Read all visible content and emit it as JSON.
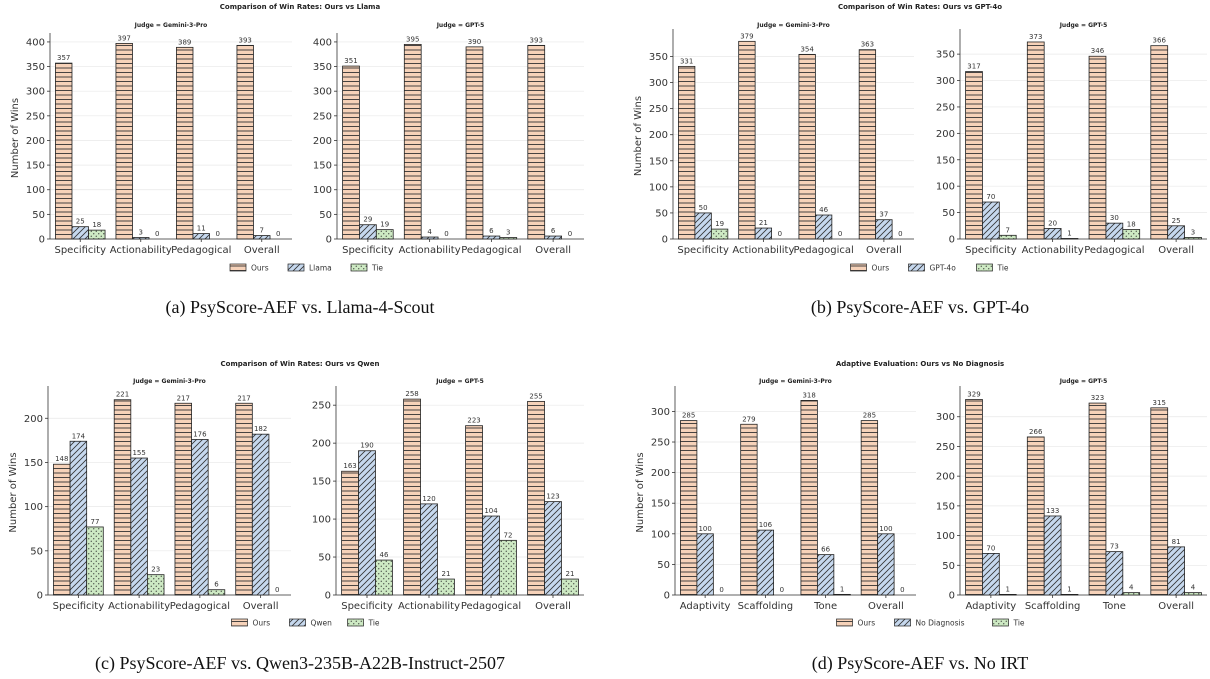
{
  "colors": {
    "ours": "#f6d2b9",
    "baseline": "#c6d8ee",
    "tie": "#cde9c3",
    "edge": "#222222",
    "grid": "#e6e6e6"
  },
  "patterns": {
    "ours": "horizontal-lines",
    "baseline": "diagonal-lines",
    "tie": "dots"
  },
  "chart_data": [
    {
      "type": "bar",
      "caption": "(a) PsyScore-AEF vs. Llama-4-Scout",
      "title": "Comparison of Win Rates: Ours vs Llama",
      "ylabel": "Number of Wins",
      "legend": [
        "Ours",
        "Llama",
        "Tie"
      ],
      "legend_position": "bottom-center",
      "grid": true,
      "panels": [
        {
          "judge": "Judge = Gemini-3-Pro",
          "ylim": [
            0,
            410
          ],
          "yticks": [
            0,
            50,
            100,
            150,
            200,
            250,
            300,
            350,
            400
          ],
          "categories": [
            "Specificity",
            "Actionability",
            "Pedagogical",
            "Overall"
          ],
          "series": [
            {
              "name": "Ours",
              "values": [
                357,
                397,
                389,
                393
              ]
            },
            {
              "name": "Llama",
              "values": [
                25,
                3,
                11,
                7
              ]
            },
            {
              "name": "Tie",
              "values": [
                18,
                0,
                0,
                0
              ]
            }
          ]
        },
        {
          "judge": "Judge = GPT-5",
          "ylim": [
            0,
            410
          ],
          "yticks": [
            0,
            50,
            100,
            150,
            200,
            250,
            300,
            350,
            400
          ],
          "categories": [
            "Specificity",
            "Actionability",
            "Pedagogical",
            "Overall"
          ],
          "series": [
            {
              "name": "Ours",
              "values": [
                351,
                395,
                390,
                393
              ]
            },
            {
              "name": "Llama",
              "values": [
                29,
                4,
                6,
                6
              ]
            },
            {
              "name": "Tie",
              "values": [
                19,
                0,
                3,
                0
              ]
            }
          ]
        }
      ]
    },
    {
      "type": "bar",
      "caption": "(b) PsyScore-AEF vs. GPT-4o",
      "title": "Comparison of Win Rates: Ours vs GPT-4o",
      "ylabel": "Number of Wins",
      "legend": [
        "Ours",
        "GPT-4o",
        "Tie"
      ],
      "legend_position": "bottom-center",
      "grid": true,
      "panels": [
        {
          "judge": "Judge = Gemini-3-Pro",
          "ylim": [
            0,
            395
          ],
          "yticks": [
            0,
            50,
            100,
            150,
            200,
            250,
            300,
            350
          ],
          "categories": [
            "Specificity",
            "Actionability",
            "Pedagogical",
            "Overall"
          ],
          "series": [
            {
              "name": "Ours",
              "values": [
                331,
                379,
                354,
                363
              ]
            },
            {
              "name": "GPT-4o",
              "values": [
                50,
                21,
                46,
                37
              ]
            },
            {
              "name": "Tie",
              "values": [
                19,
                0,
                0,
                0
              ]
            }
          ]
        },
        {
          "judge": "Judge = GPT-5",
          "ylim": [
            0,
            390
          ],
          "yticks": [
            0,
            50,
            100,
            150,
            200,
            250,
            300,
            350
          ],
          "categories": [
            "Specificity",
            "Actionability",
            "Pedagogical",
            "Overall"
          ],
          "series": [
            {
              "name": "Ours",
              "values": [
                317,
                373,
                346,
                366
              ]
            },
            {
              "name": "GPT-4o",
              "values": [
                70,
                20,
                30,
                25
              ]
            },
            {
              "name": "Tie",
              "values": [
                7,
                1,
                18,
                3
              ]
            }
          ]
        }
      ]
    },
    {
      "type": "bar",
      "caption": "(c) PsyScore-AEF vs. Qwen3-235B-A22B-Instruct-2507",
      "title": "Comparison of Win Rates: Ours vs Qwen",
      "ylabel": "Number of Wins",
      "legend": [
        "Ours",
        "Qwen",
        "Tie"
      ],
      "legend_position": "bottom-center",
      "grid": true,
      "panels": [
        {
          "judge": "Judge = Gemini-3-Pro",
          "ylim": [
            0,
            232
          ],
          "yticks": [
            0,
            50,
            100,
            150,
            200
          ],
          "categories": [
            "Specificity",
            "Actionability",
            "Pedagogical",
            "Overall"
          ],
          "series": [
            {
              "name": "Ours",
              "values": [
                148,
                221,
                217,
                217
              ]
            },
            {
              "name": "Qwen",
              "values": [
                174,
                155,
                176,
                182
              ]
            },
            {
              "name": "Tie",
              "values": [
                77,
                23,
                6,
                0
              ]
            }
          ]
        },
        {
          "judge": "Judge = GPT-5",
          "ylim": [
            0,
            270
          ],
          "yticks": [
            0,
            50,
            100,
            150,
            200,
            250
          ],
          "categories": [
            "Specificity",
            "Actionability",
            "Pedagogical",
            "Overall"
          ],
          "series": [
            {
              "name": "Ours",
              "values": [
                163,
                258,
                223,
                255
              ]
            },
            {
              "name": "Qwen",
              "values": [
                190,
                120,
                104,
                123
              ]
            },
            {
              "name": "Tie",
              "values": [
                46,
                21,
                72,
                21
              ]
            }
          ]
        }
      ]
    },
    {
      "type": "bar",
      "caption": "(d) PsyScore-AEF vs. No IRT",
      "title": "Adaptive Evaluation: Ours vs No Diagnosis",
      "ylabel": "Number of Wins",
      "legend": [
        "Ours",
        "No Diagnosis",
        "Tie"
      ],
      "legend_position": "bottom-center",
      "grid": true,
      "panels": [
        {
          "judge": "Judge = Gemini-3-Pro",
          "ylim": [
            0,
            335
          ],
          "yticks": [
            0,
            50,
            100,
            150,
            200,
            250,
            300
          ],
          "categories": [
            "Adaptivity",
            "Scaffolding",
            "Tone",
            "Overall"
          ],
          "series": [
            {
              "name": "Ours",
              "values": [
                285,
                279,
                318,
                285
              ]
            },
            {
              "name": "No Diagnosis",
              "values": [
                100,
                106,
                66,
                100
              ]
            },
            {
              "name": "Tie",
              "values": [
                0,
                0,
                1,
                0
              ]
            }
          ]
        },
        {
          "judge": "Judge = GPT-5",
          "ylim": [
            0,
            345
          ],
          "yticks": [
            0,
            50,
            100,
            150,
            200,
            250,
            300
          ],
          "categories": [
            "Adaptivity",
            "Scaffolding",
            "Tone",
            "Overall"
          ],
          "series": [
            {
              "name": "Ours",
              "values": [
                329,
                266,
                323,
                315
              ]
            },
            {
              "name": "No Diagnosis",
              "values": [
                70,
                133,
                73,
                81
              ]
            },
            {
              "name": "Tie",
              "values": [
                1,
                1,
                4,
                4
              ]
            }
          ]
        }
      ]
    }
  ]
}
